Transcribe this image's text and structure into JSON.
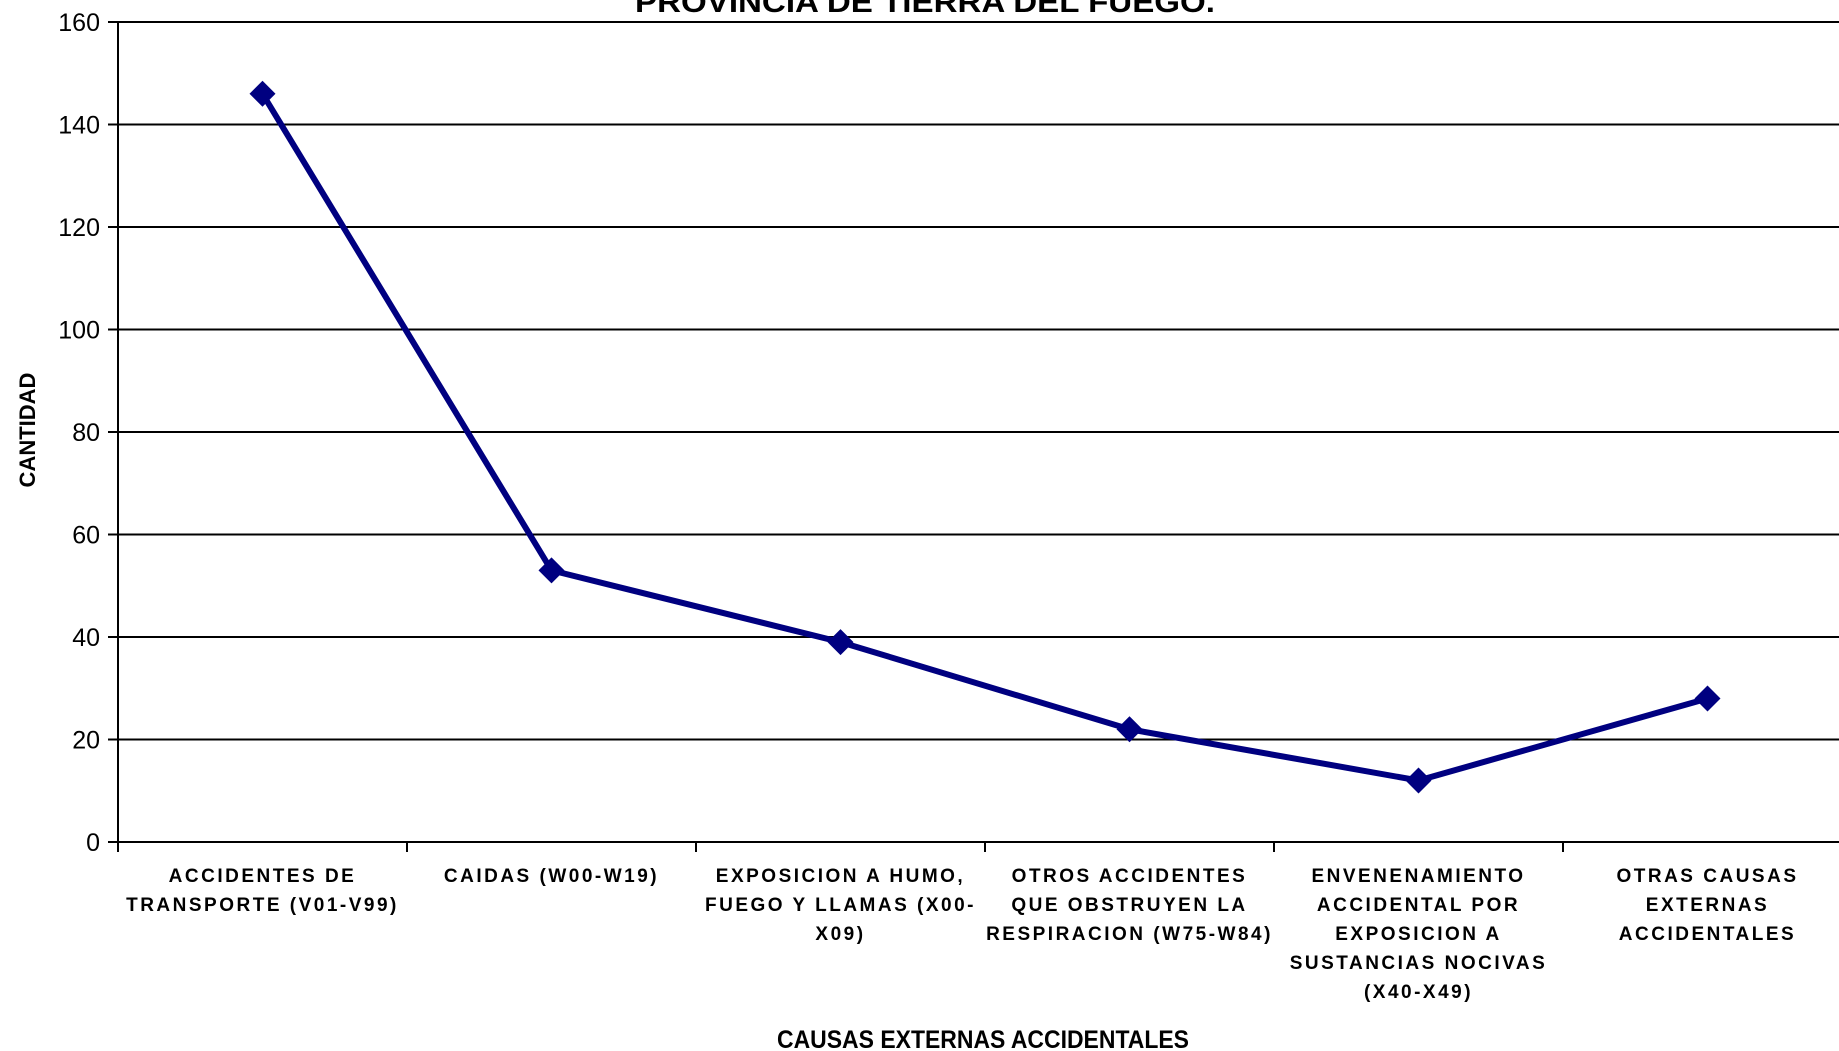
{
  "chart_data": {
    "type": "line",
    "title": "PROVINCIA DE TIERRA DEL FUEGO.",
    "xlabel": "CAUSAS EXTERNAS ACCIDENTALES",
    "ylabel": "CANTIDAD",
    "ylim": [
      0,
      160
    ],
    "yticks": [
      0,
      20,
      40,
      60,
      80,
      100,
      120,
      140,
      160
    ],
    "grid": true,
    "categories": [
      [
        "ACCIDENTES DE",
        "TRANSPORTE (V01-V99)"
      ],
      [
        "CAIDAS (W00-W19)"
      ],
      [
        "EXPOSICION A HUMO,",
        "FUEGO Y LLAMAS (X00-",
        "X09)"
      ],
      [
        "OTROS ACCIDENTES",
        "QUE OBSTRUYEN LA",
        "RESPIRACION (W75-W84)"
      ],
      [
        "ENVENENAMIENTO",
        "ACCIDENTAL POR",
        "EXPOSICION A",
        "SUSTANCIAS NOCIVAS",
        "(X40-X49)"
      ],
      [
        "OTRAS CAUSAS",
        "EXTERNAS",
        "ACCIDENTALES"
      ]
    ],
    "series": [
      {
        "values": [
          146,
          53,
          39,
          22,
          12,
          28
        ],
        "color": "#000080",
        "marker": "diamond"
      }
    ]
  }
}
